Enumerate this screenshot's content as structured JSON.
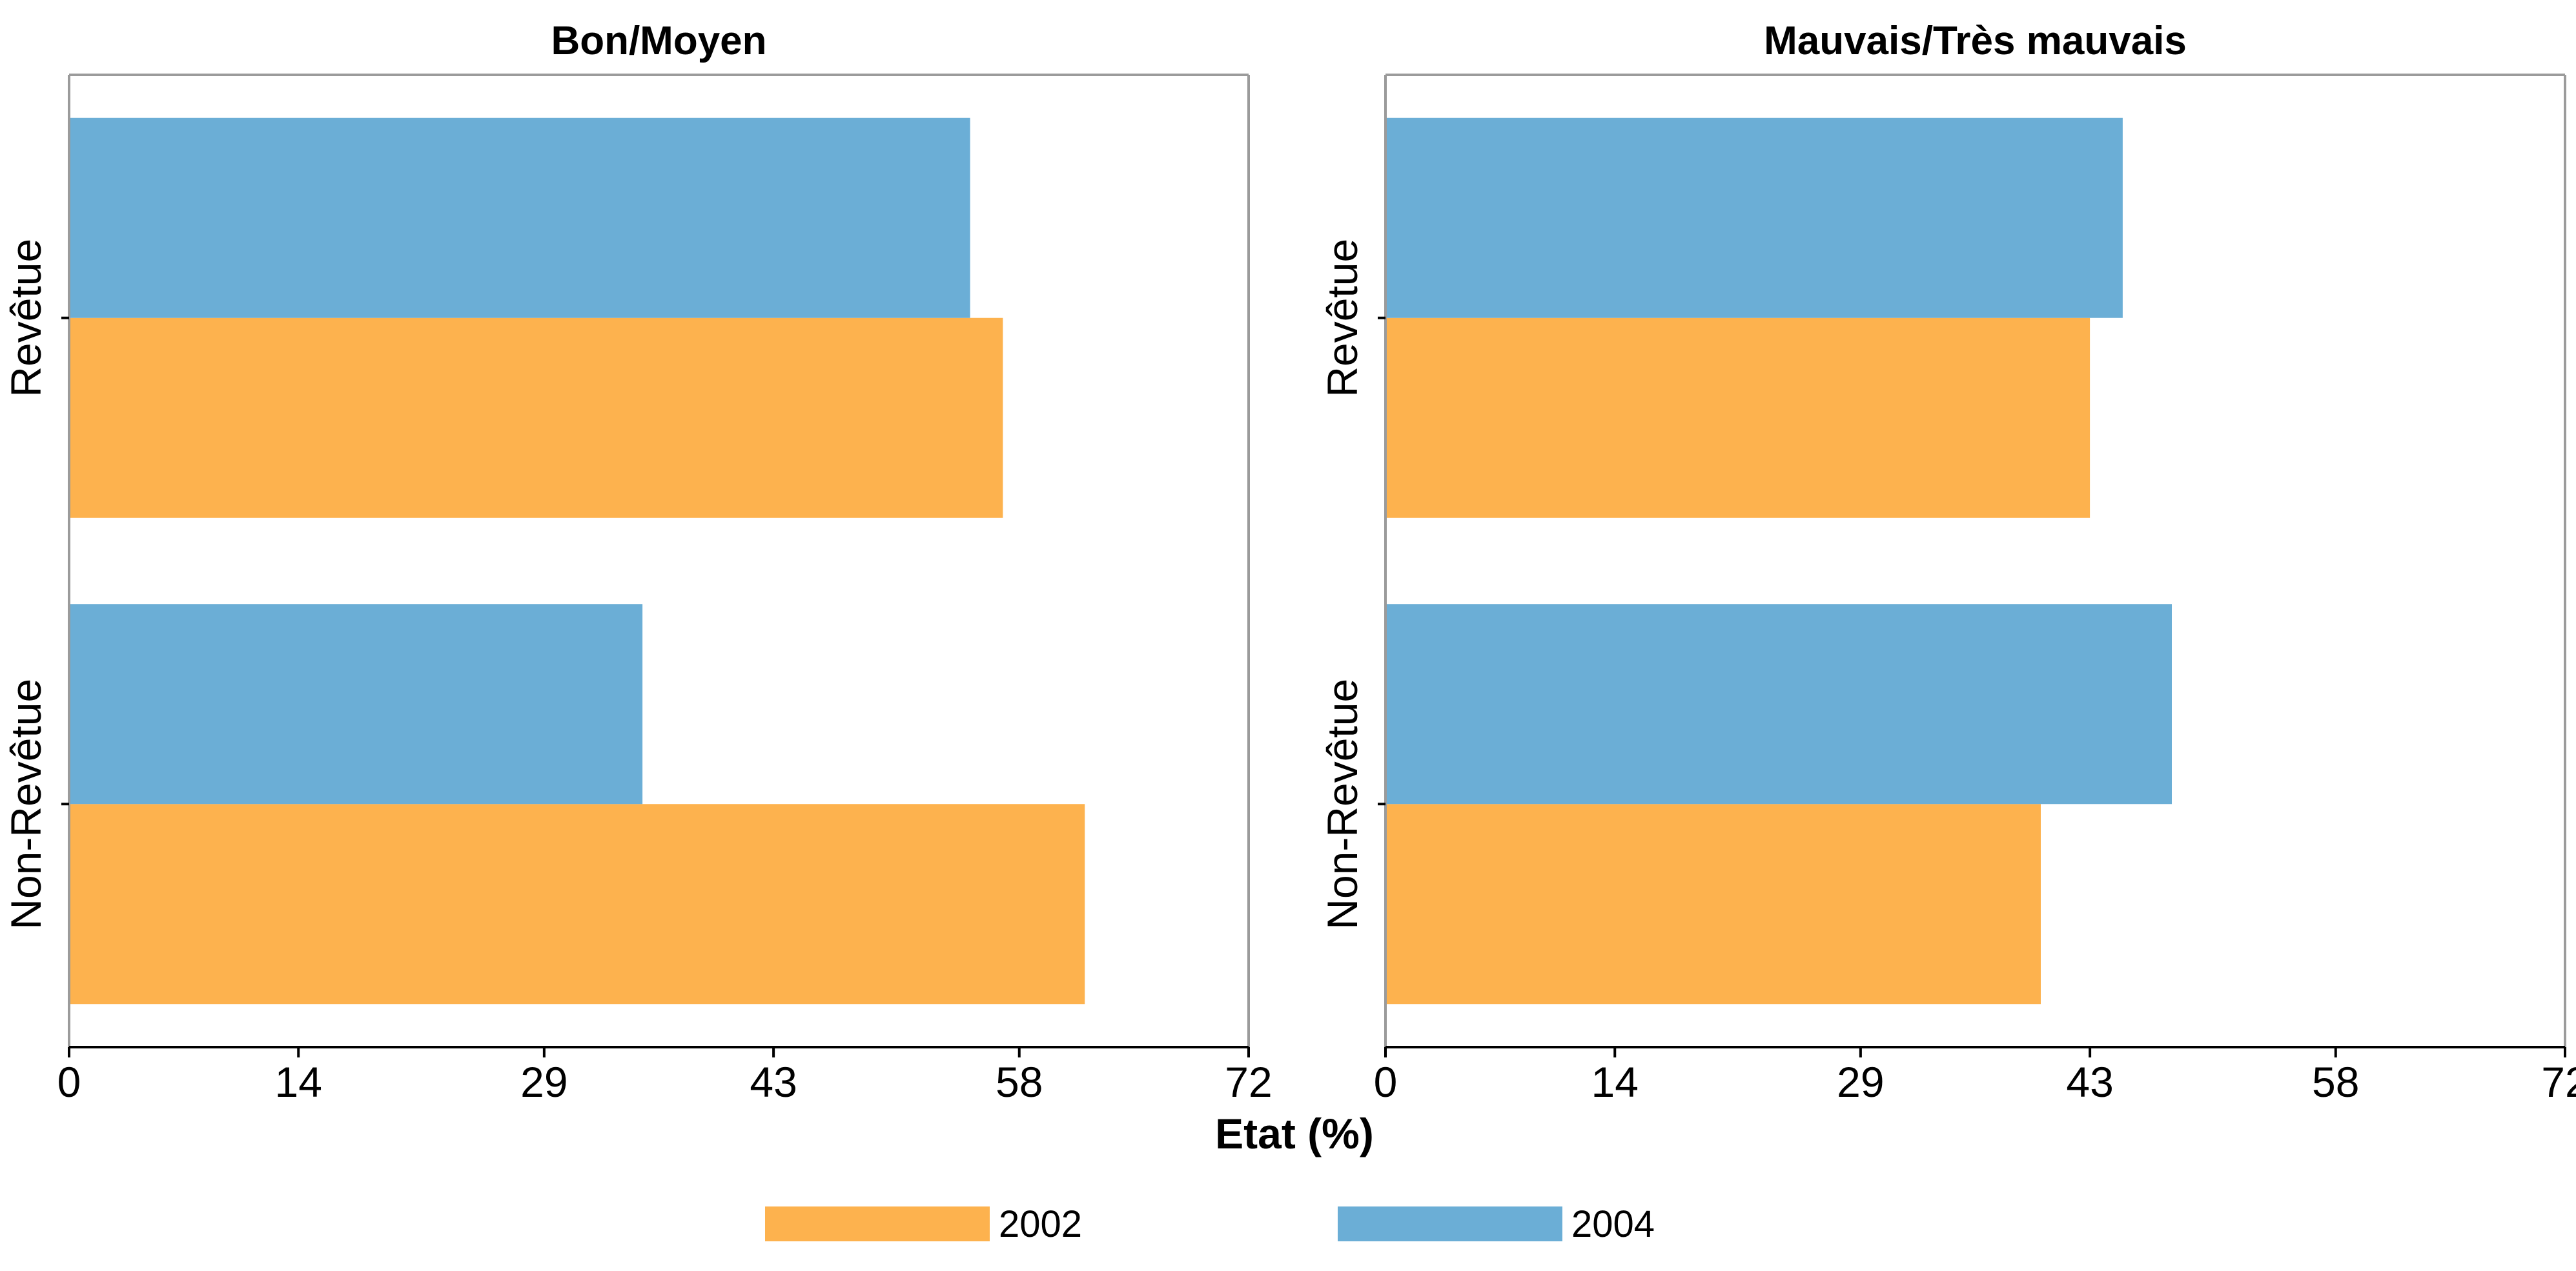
{
  "chart_data": {
    "type": "bar",
    "orientation": "horizontal",
    "xlabel": "Etat (%)",
    "xlim": [
      0,
      72
    ],
    "x_ticks": [
      "0",
      "14",
      "29",
      "43",
      "58",
      "72"
    ],
    "categories": [
      "Revêtue",
      "Non-Revêtue"
    ],
    "legend": {
      "placement": "bottom",
      "entries": [
        {
          "label": "2002",
          "color": "#FDB24E"
        },
        {
          "label": "2004",
          "color": "#6BAED6"
        }
      ]
    },
    "panels": [
      {
        "title": "Bon/Moyen",
        "series": [
          {
            "name": "2002",
            "values": [
              57,
              62
            ]
          },
          {
            "name": "2004",
            "values": [
              55,
              35
            ]
          }
        ]
      },
      {
        "title": "Mauvais/Très mauvais",
        "series": [
          {
            "name": "2002",
            "values": [
              43,
              40
            ]
          },
          {
            "name": "2004",
            "values": [
              45,
              48
            ]
          }
        ]
      }
    ],
    "grid": false
  }
}
